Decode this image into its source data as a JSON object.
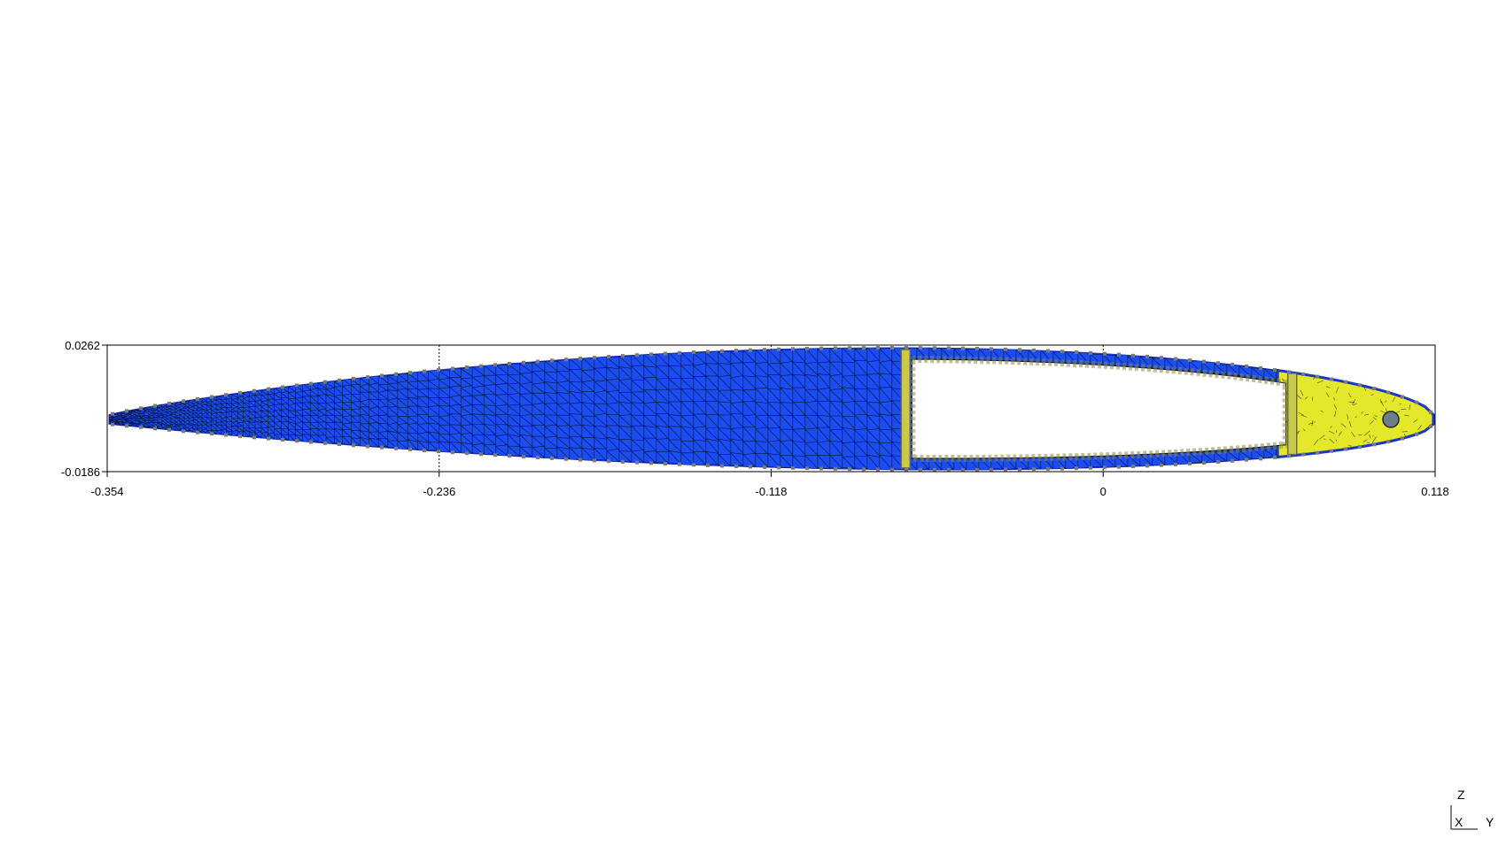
{
  "chart_data": {
    "type": "scatter",
    "x_ticks": [
      "-0.354",
      "-0.236",
      "-0.118",
      "0",
      "0.118"
    ],
    "y_ticks": [
      "0.0262",
      "-0.0186"
    ],
    "xlim": [
      -0.354,
      0.118
    ],
    "ylim": [
      -0.0186,
      0.0262
    ],
    "grid": true
  },
  "triad": {
    "z_label": "Z",
    "x_label": "X",
    "y_label": "Y"
  },
  "colors": {
    "mesh_fill": "#1b4df2",
    "mesh_line": "#000000",
    "nose_fill": "#e4e82a",
    "node": "#7a7a7a",
    "axis": "#000000"
  }
}
